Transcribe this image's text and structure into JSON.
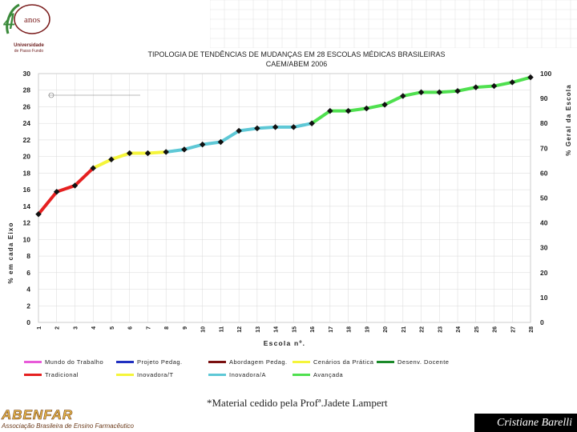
{
  "header": {
    "logo_number": "4",
    "logo_word": "anos",
    "logo_name": "Universidade",
    "logo_sub": "de Passo Fundo"
  },
  "chart_data": {
    "type": "line",
    "title": "TIPOLOGIA DE TENDÊNCIAS DE MUDANÇAS EM 28 ESCOLAS MÉDICAS BRASILEIRAS",
    "subtitle": "CAEM/ABEM 2006",
    "xlabel": "Escola nº.",
    "ylabel_left": "% em cada Eixo",
    "ylabel_right": "% Geral da Escola",
    "x": [
      1,
      2,
      3,
      4,
      5,
      6,
      7,
      8,
      9,
      10,
      11,
      12,
      13,
      14,
      15,
      16,
      17,
      18,
      19,
      20,
      21,
      22,
      23,
      24,
      25,
      26,
      27,
      28
    ],
    "x_tick_labels": [
      "1",
      "2",
      "3",
      "4",
      "5",
      "6",
      "7",
      "8",
      "9",
      "10",
      "11",
      "12",
      "13",
      "14",
      "15",
      "16",
      "17",
      "18",
      "19",
      "20",
      "21",
      "22",
      "23",
      "24",
      "25",
      "26",
      "27",
      "28"
    ],
    "y_left_ticks": [
      "0",
      "2",
      "4",
      "6",
      "8",
      "10",
      "12",
      "14",
      "16",
      "18",
      "20",
      "22",
      "24",
      "26",
      "28",
      "30"
    ],
    "y_right_ticks": [
      "0",
      "10",
      "20",
      "30",
      "40",
      "50",
      "60",
      "70",
      "80",
      "90",
      "100"
    ],
    "ylim_left": [
      0,
      30
    ],
    "ylim_right": [
      0,
      100
    ],
    "axis_right_on_series": true,
    "series_values_right_axis": [
      43.5,
      52.5,
      55,
      62,
      65.5,
      68,
      68,
      68.5,
      69.5,
      71.5,
      72.5,
      77,
      78,
      78.5,
      78.5,
      80,
      85,
      85,
      86,
      87.5,
      91,
      92.5,
      92.5,
      93,
      94.5,
      95,
      96.5,
      98.5
    ],
    "segments": [
      {
        "name": "Tradicional",
        "color": "#e52020",
        "from_index": 0,
        "to_index": 3
      },
      {
        "name": "Inovadora/T",
        "color": "#f5f53a",
        "from_index": 3,
        "to_index": 7
      },
      {
        "name": "Inovadora/A",
        "color": "#5ec8d6",
        "from_index": 7,
        "to_index": 15
      },
      {
        "name": "Avançada",
        "color": "#4fe04f",
        "from_index": 15,
        "to_index": 27
      }
    ],
    "legend": [
      {
        "label": "Mundo do Trabalho",
        "color": "#e85ad9"
      },
      {
        "label": "Projeto Pedag.",
        "color": "#2030c0"
      },
      {
        "label": "Abordagem Pedag.",
        "color": "#7a1010"
      },
      {
        "label": "Cenários da Prática",
        "color": "#f5f53a"
      },
      {
        "label": "Desenv. Docente",
        "color": "#1b8a2a"
      },
      {
        "label": "Tradicional",
        "color": "#e52020"
      },
      {
        "label": "Inovadora/T",
        "color": "#f5f53a"
      },
      {
        "label": "Inovadora/A",
        "color": "#5ec8d6"
      },
      {
        "label": "Avançada",
        "color": "#4fe04f"
      }
    ],
    "grid": true,
    "legend_placement": "bottom"
  },
  "caption": "*Material cedido pela Profª.Jadete Lampert",
  "footer": {
    "org_name": "ABENFAR",
    "org_full": "Associação Brasileira de Ensino Farmacêutico",
    "author": "Cristiane Barelli"
  }
}
